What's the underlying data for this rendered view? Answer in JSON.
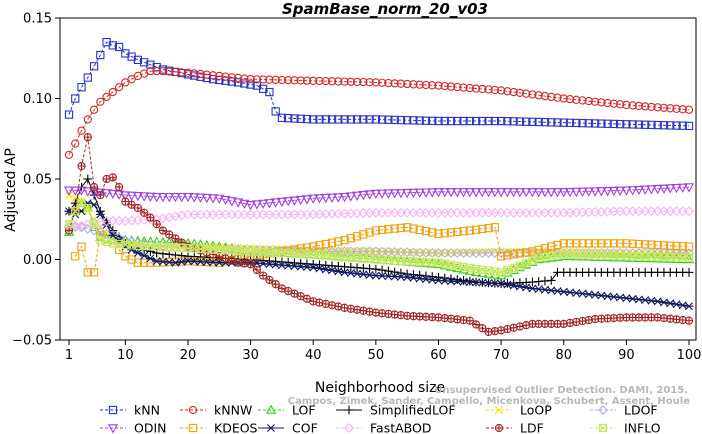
{
  "chart_data": {
    "type": "line",
    "title": "SpamBase_norm_20_v03",
    "xlabel": "Neighborhood size",
    "ylabel": "Adjusted AP",
    "xlim": [
      1,
      100
    ],
    "ylim": [
      -0.05,
      0.15
    ],
    "xticks": [
      1,
      10,
      20,
      30,
      40,
      50,
      60,
      70,
      80,
      90,
      100
    ],
    "yticks": [
      -0.05,
      0.0,
      0.05,
      0.1,
      0.15
    ],
    "ytick_labels": [
      "−0.05",
      "0.00",
      "0.05",
      "0.10",
      "0.15"
    ],
    "legend_position": "bottom",
    "grid": false,
    "series": [
      {
        "name": "kNN",
        "color": "#2a35c8",
        "dash": "3,2",
        "marker": "square",
        "points": [
          [
            1,
            0.09
          ],
          [
            2,
            0.1
          ],
          [
            3,
            0.107
          ],
          [
            4,
            0.113
          ],
          [
            5,
            0.12
          ],
          [
            6,
            0.127
          ],
          [
            7,
            0.135
          ],
          [
            8,
            0.133
          ],
          [
            9,
            0.132
          ],
          [
            10,
            0.128
          ],
          [
            12,
            0.124
          ],
          [
            14,
            0.121
          ],
          [
            16,
            0.118
          ],
          [
            20,
            0.115
          ],
          [
            24,
            0.112
          ],
          [
            28,
            0.11
          ],
          [
            31,
            0.108
          ],
          [
            33,
            0.104
          ],
          [
            34,
            0.092
          ],
          [
            35,
            0.088
          ],
          [
            40,
            0.087
          ],
          [
            50,
            0.087
          ],
          [
            60,
            0.086
          ],
          [
            70,
            0.086
          ],
          [
            80,
            0.085
          ],
          [
            90,
            0.084
          ],
          [
            100,
            0.083
          ]
        ]
      },
      {
        "name": "kNNW",
        "color": "#d42a2a",
        "dash": "3,2",
        "marker": "circle",
        "points": [
          [
            1,
            0.065
          ],
          [
            2,
            0.072
          ],
          [
            3,
            0.08
          ],
          [
            4,
            0.087
          ],
          [
            5,
            0.093
          ],
          [
            6,
            0.098
          ],
          [
            8,
            0.104
          ],
          [
            10,
            0.11
          ],
          [
            12,
            0.114
          ],
          [
            14,
            0.117
          ],
          [
            16,
            0.117
          ],
          [
            20,
            0.116
          ],
          [
            25,
            0.114
          ],
          [
            30,
            0.112
          ],
          [
            40,
            0.111
          ],
          [
            50,
            0.11
          ],
          [
            60,
            0.108
          ],
          [
            70,
            0.105
          ],
          [
            80,
            0.1
          ],
          [
            90,
            0.096
          ],
          [
            100,
            0.093
          ]
        ]
      },
      {
        "name": "LOF",
        "color": "#33cc1a",
        "dash": "3,2",
        "marker": "triangle-up",
        "points": [
          [
            1,
            0.017
          ],
          [
            2,
            0.03
          ],
          [
            3,
            0.035
          ],
          [
            4,
            0.032
          ],
          [
            5,
            0.02
          ],
          [
            6,
            0.014
          ],
          [
            8,
            0.012
          ],
          [
            10,
            0.012
          ],
          [
            14,
            0.011
          ],
          [
            20,
            0.01
          ],
          [
            25,
            0.008
          ],
          [
            30,
            0.005
          ],
          [
            40,
            0.003
          ],
          [
            50,
            0.0
          ],
          [
            60,
            -0.003
          ],
          [
            66,
            -0.008
          ],
          [
            70,
            -0.01
          ],
          [
            73,
            -0.005
          ],
          [
            76,
            0.0
          ],
          [
            80,
            0.002
          ],
          [
            90,
            0.001
          ],
          [
            100,
            0.0
          ]
        ]
      },
      {
        "name": "SimplifiedLOF",
        "color": "#000000",
        "dash": "none",
        "marker": "plus",
        "points": [
          [
            1,
            0.03
          ],
          [
            2,
            0.035
          ],
          [
            3,
            0.045
          ],
          [
            4,
            0.05
          ],
          [
            5,
            0.04
          ],
          [
            6,
            0.03
          ],
          [
            8,
            0.018
          ],
          [
            10,
            0.01
          ],
          [
            12,
            0.007
          ],
          [
            15,
            0.004
          ],
          [
            20,
            0.002
          ],
          [
            30,
            0.0
          ],
          [
            40,
            -0.003
          ],
          [
            50,
            -0.006
          ],
          [
            55,
            -0.009
          ],
          [
            60,
            -0.011
          ],
          [
            66,
            -0.014
          ],
          [
            70,
            -0.015
          ],
          [
            75,
            -0.014
          ],
          [
            78,
            -0.013
          ],
          [
            79,
            -0.008
          ],
          [
            85,
            -0.008
          ],
          [
            90,
            -0.008
          ],
          [
            100,
            -0.008
          ]
        ]
      },
      {
        "name": "LoOP",
        "color": "#f2e600",
        "dash": "3,2",
        "marker": "x",
        "points": [
          [
            1,
            0.04
          ],
          [
            2,
            0.038
          ],
          [
            3,
            0.036
          ],
          [
            4,
            0.03
          ],
          [
            6,
            0.02
          ],
          [
            8,
            0.013
          ],
          [
            10,
            0.01
          ],
          [
            15,
            0.008
          ],
          [
            20,
            0.008
          ],
          [
            30,
            0.007
          ],
          [
            40,
            0.006
          ],
          [
            50,
            0.005
          ],
          [
            60,
            0.004
          ],
          [
            70,
            0.005
          ],
          [
            80,
            0.005
          ],
          [
            90,
            0.004
          ],
          [
            100,
            0.004
          ]
        ]
      },
      {
        "name": "LDOF",
        "color": "#b0b0e8",
        "dash": "3,2",
        "marker": "diamond",
        "points": [
          [
            1,
            0.02
          ],
          [
            3,
            0.02
          ],
          [
            5,
            0.018
          ],
          [
            8,
            0.015
          ],
          [
            10,
            0.012
          ],
          [
            15,
            0.008
          ],
          [
            20,
            0.007
          ],
          [
            30,
            0.006
          ],
          [
            40,
            0.005
          ],
          [
            50,
            0.005
          ],
          [
            60,
            0.004
          ],
          [
            70,
            0.004
          ],
          [
            80,
            0.004
          ],
          [
            90,
            0.004
          ],
          [
            100,
            0.004
          ]
        ]
      },
      {
        "name": "ODIN",
        "color": "#a040e0",
        "dash": "3,2",
        "marker": "triangle-down",
        "points": [
          [
            1,
            0.043
          ],
          [
            3,
            0.043
          ],
          [
            5,
            0.042
          ],
          [
            8,
            0.041
          ],
          [
            10,
            0.04
          ],
          [
            15,
            0.039
          ],
          [
            20,
            0.039
          ],
          [
            25,
            0.038
          ],
          [
            30,
            0.034
          ],
          [
            35,
            0.036
          ],
          [
            40,
            0.038
          ],
          [
            45,
            0.039
          ],
          [
            50,
            0.041
          ],
          [
            60,
            0.042
          ],
          [
            70,
            0.042
          ],
          [
            80,
            0.042
          ],
          [
            90,
            0.043
          ],
          [
            100,
            0.045
          ]
        ]
      },
      {
        "name": "KDEOS",
        "color": "#f0a010",
        "dash": "3,2",
        "marker": "square",
        "points": [
          [
            2,
            0.002
          ],
          [
            3,
            0.008
          ],
          [
            4,
            -0.008
          ],
          [
            5,
            -0.008
          ],
          [
            6,
            0.015
          ],
          [
            8,
            0.01
          ],
          [
            10,
            0.002
          ],
          [
            12,
            -0.002
          ],
          [
            15,
            -0.002
          ],
          [
            20,
            -0.001
          ],
          [
            25,
            -0.002
          ],
          [
            30,
            0.002
          ],
          [
            40,
            0.008
          ],
          [
            45,
            0.012
          ],
          [
            50,
            0.018
          ],
          [
            55,
            0.02
          ],
          [
            60,
            0.016
          ],
          [
            65,
            0.018
          ],
          [
            69,
            0.02
          ],
          [
            70,
            0.002
          ],
          [
            75,
            0.005
          ],
          [
            80,
            0.01
          ],
          [
            90,
            0.01
          ],
          [
            100,
            0.008
          ]
        ]
      },
      {
        "name": "COF",
        "color": "#101860",
        "dash": "none",
        "marker": "asterisk",
        "points": [
          [
            1,
            0.03
          ],
          [
            2,
            0.028
          ],
          [
            3,
            0.03
          ],
          [
            4,
            0.035
          ],
          [
            5,
            0.034
          ],
          [
            6,
            0.028
          ],
          [
            8,
            0.015
          ],
          [
            10,
            0.008
          ],
          [
            12,
            0.004
          ],
          [
            15,
            -0.001
          ],
          [
            18,
            -0.002
          ],
          [
            20,
            -0.001
          ],
          [
            25,
            -0.002
          ],
          [
            30,
            -0.002
          ],
          [
            40,
            -0.005
          ],
          [
            45,
            -0.008
          ],
          [
            50,
            -0.01
          ],
          [
            55,
            -0.011
          ],
          [
            60,
            -0.013
          ],
          [
            70,
            -0.015
          ],
          [
            75,
            -0.018
          ],
          [
            80,
            -0.02
          ],
          [
            85,
            -0.022
          ],
          [
            90,
            -0.024
          ],
          [
            95,
            -0.026
          ],
          [
            100,
            -0.029
          ]
        ]
      },
      {
        "name": "FastABOD",
        "color": "#f5b5f5",
        "dash": "3,2",
        "marker": "diamond",
        "points": [
          [
            1,
            0.021
          ],
          [
            3,
            0.021
          ],
          [
            5,
            0.023
          ],
          [
            8,
            0.024
          ],
          [
            10,
            0.024
          ],
          [
            15,
            0.025
          ],
          [
            20,
            0.028
          ],
          [
            30,
            0.028
          ],
          [
            40,
            0.028
          ],
          [
            50,
            0.029
          ],
          [
            60,
            0.029
          ],
          [
            70,
            0.029
          ],
          [
            80,
            0.029
          ],
          [
            90,
            0.03
          ],
          [
            100,
            0.03
          ]
        ]
      },
      {
        "name": "LDF",
        "color": "#a02828",
        "dash": "3,2",
        "marker": "circle-plus",
        "points": [
          [
            1,
            0.018
          ],
          [
            2,
            0.03
          ],
          [
            3,
            0.058
          ],
          [
            4,
            0.076
          ],
          [
            5,
            0.045
          ],
          [
            6,
            0.04
          ],
          [
            7,
            0.05
          ],
          [
            8,
            0.051
          ],
          [
            9,
            0.045
          ],
          [
            10,
            0.036
          ],
          [
            12,
            0.032
          ],
          [
            14,
            0.026
          ],
          [
            16,
            0.018
          ],
          [
            20,
            0.008
          ],
          [
            25,
            0.002
          ],
          [
            28,
            -0.002
          ],
          [
            30,
            -0.003
          ],
          [
            32,
            -0.01
          ],
          [
            35,
            -0.018
          ],
          [
            40,
            -0.026
          ],
          [
            45,
            -0.03
          ],
          [
            50,
            -0.033
          ],
          [
            55,
            -0.035
          ],
          [
            60,
            -0.036
          ],
          [
            65,
            -0.038
          ],
          [
            68,
            -0.045
          ],
          [
            70,
            -0.044
          ],
          [
            75,
            -0.04
          ],
          [
            80,
            -0.04
          ],
          [
            85,
            -0.037
          ],
          [
            90,
            -0.036
          ],
          [
            95,
            -0.036
          ],
          [
            100,
            -0.038
          ]
        ]
      },
      {
        "name": "INFLO",
        "color": "#c8e860",
        "dash": "3,2",
        "marker": "square-x",
        "points": [
          [
            1,
            0.022
          ],
          [
            2,
            0.03
          ],
          [
            3,
            0.035
          ],
          [
            4,
            0.032
          ],
          [
            5,
            0.022
          ],
          [
            6,
            0.012
          ],
          [
            8,
            0.01
          ],
          [
            10,
            0.009
          ],
          [
            15,
            0.008
          ],
          [
            20,
            0.007
          ],
          [
            30,
            0.005
          ],
          [
            40,
            0.003
          ],
          [
            50,
            0.0
          ],
          [
            60,
            -0.002
          ],
          [
            66,
            -0.006
          ],
          [
            70,
            -0.008
          ],
          [
            73,
            -0.004
          ],
          [
            76,
            0.001
          ],
          [
            80,
            0.003
          ],
          [
            90,
            0.002
          ],
          [
            100,
            0.001
          ]
        ]
      }
    ]
  },
  "watermark": {
    "line1": "Unsupervised Outlier Detection. DAMI, 2015.",
    "line2": "Campos, Zimek, Sander, Campello, Micenkova, Schubert, Assent, Houle"
  },
  "legend_rows": [
    [
      "kNN",
      "kNNW",
      "LOF",
      "SimplifiedLOF",
      "LoOP",
      "LDOF"
    ],
    [
      "ODIN",
      "KDEOS",
      "COF",
      "FastABOD",
      "LDF",
      "INFLO"
    ]
  ]
}
